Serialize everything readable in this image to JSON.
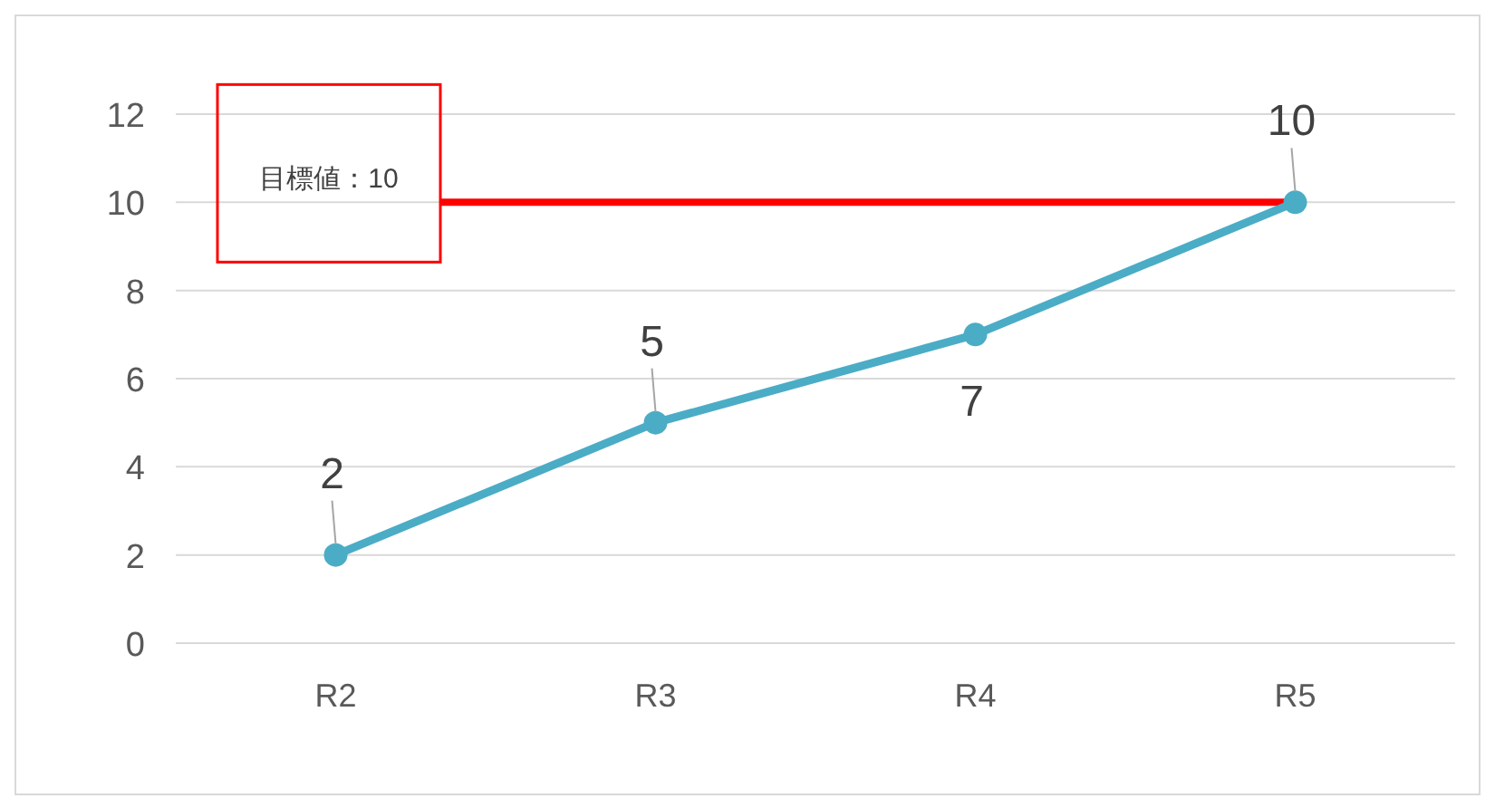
{
  "chart_data": {
    "type": "line",
    "categories": [
      "R2",
      "R3",
      "R4",
      "R5"
    ],
    "series": [
      {
        "color": "#4bacc6",
        "values": [
          2,
          5,
          7,
          10
        ]
      }
    ],
    "ylim": [
      0,
      12
    ],
    "yticks": [
      0,
      2,
      4,
      6,
      8,
      10,
      12
    ],
    "grid": "y",
    "marker": "circle",
    "line_style": "solid",
    "data_labels": true,
    "ref_lines": [
      {
        "axis": "y",
        "value": 10,
        "label": "目標値：10",
        "color": "#ff0000"
      }
    ]
  }
}
